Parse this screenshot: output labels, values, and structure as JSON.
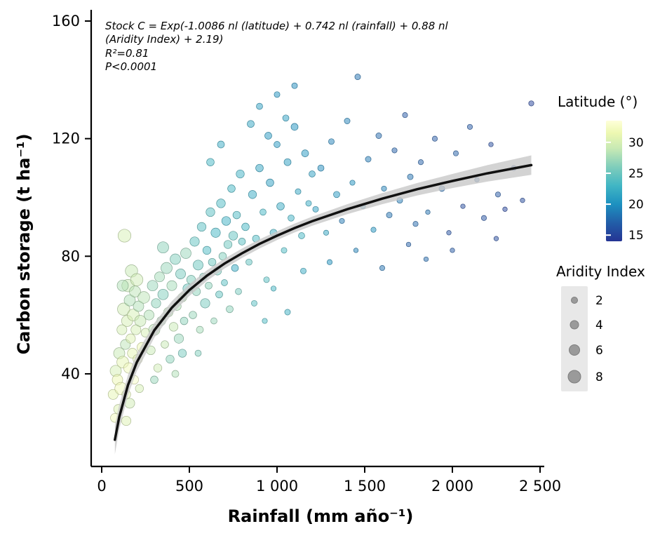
{
  "annotation": {
    "line1": "Stock C = Exp(-1.0086 nl (latitude) + 0.742 nl (rainfall) + 0.88 nl",
    "line2": "(Aridity Index) + 2.19)",
    "line3": "R²=0.81",
    "line4": "P<0.0001"
  },
  "colors": {
    "background": "#ffffff",
    "curve": "#111111",
    "band": "#c8c8c8",
    "axis": "#000000",
    "legend_key_bg": "#e8e8e8",
    "size_legend_fill": "#9a9a9a",
    "size_legend_stroke": "#7d7d7d"
  },
  "chart_data": {
    "type": "scatter",
    "title": "",
    "xlabel": "Rainfall (mm año⁻¹)",
    "ylabel": "Carbon storage (t ha⁻¹)",
    "xlim": [
      0,
      2500
    ],
    "ylim": [
      8.5,
      160
    ],
    "grid": false,
    "x_ticks": {
      "values": [
        0,
        500,
        1000,
        1500,
        2000,
        2500
      ],
      "labels": [
        "0",
        "500",
        "1 000",
        "1 500",
        "2 000",
        "2 500"
      ]
    },
    "y_ticks": {
      "values": [
        40,
        80,
        120,
        160
      ],
      "labels": [
        "40",
        "80",
        "120",
        "160"
      ]
    },
    "fit_curve": {
      "x": [
        75,
        100,
        150,
        200,
        300,
        400,
        500,
        600,
        700,
        800,
        900,
        1000,
        1100,
        1200,
        1400,
        1600,
        1800,
        2000,
        2200,
        2450
      ],
      "y": [
        17.6,
        25.3,
        36.2,
        43.9,
        54.8,
        62.5,
        68.5,
        73.4,
        77.5,
        81.0,
        84.2,
        87.0,
        89.6,
        91.9,
        96.0,
        99.6,
        102.8,
        105.6,
        108.2,
        111.0
      ],
      "band_halfwidth": [
        5,
        4.2,
        3.4,
        3.0,
        2.5,
        2.2,
        2.0,
        1.8,
        1.7,
        1.6,
        1.55,
        1.5,
        1.5,
        1.55,
        1.7,
        1.9,
        2.1,
        2.4,
        2.8,
        3.3
      ]
    },
    "point_fields": [
      "rainfall_mm",
      "carbon_t_ha",
      "latitude_deg",
      "aridity_index"
    ],
    "points": [
      [
        65,
        33,
        31,
        6
      ],
      [
        75,
        25,
        32,
        5
      ],
      [
        80,
        41,
        30,
        7
      ],
      [
        90,
        38,
        31.5,
        6.5
      ],
      [
        95,
        28,
        30.5,
        5.5
      ],
      [
        100,
        47,
        29,
        7
      ],
      [
        110,
        35,
        32,
        8
      ],
      [
        115,
        55,
        30,
        6
      ],
      [
        120,
        44,
        31,
        7.5
      ],
      [
        125,
        62,
        29.5,
        8
      ],
      [
        130,
        87,
        30,
        8.5
      ],
      [
        135,
        50,
        28.5,
        6
      ],
      [
        140,
        33,
        31,
        5
      ],
      [
        145,
        58,
        30,
        7
      ],
      [
        150,
        70,
        29,
        8
      ],
      [
        155,
        42,
        32,
        6.5
      ],
      [
        160,
        65,
        28,
        7
      ],
      [
        165,
        52,
        30.5,
        5.5
      ],
      [
        170,
        75,
        29,
        8
      ],
      [
        175,
        47,
        31,
        6
      ],
      [
        180,
        60,
        30,
        7.5
      ],
      [
        185,
        38,
        32.5,
        5
      ],
      [
        190,
        68,
        28.5,
        7
      ],
      [
        195,
        55,
        30,
        6
      ],
      [
        200,
        72,
        29.5,
        8
      ],
      [
        205,
        45,
        31,
        5.5
      ],
      [
        210,
        63,
        28,
        6.5
      ],
      [
        215,
        35,
        30,
        4.5
      ],
      [
        220,
        58,
        29,
        7
      ],
      [
        230,
        49,
        31.5,
        6
      ],
      [
        240,
        66,
        28.5,
        7.5
      ],
      [
        250,
        54,
        30,
        5
      ],
      [
        160,
        30,
        29.5,
        6
      ],
      [
        140,
        24,
        30.5,
        5.5
      ],
      [
        120,
        70,
        28,
        7
      ],
      [
        270,
        60,
        28,
        6
      ],
      [
        280,
        48,
        29,
        5
      ],
      [
        290,
        70,
        27,
        6.5
      ],
      [
        300,
        55,
        28.5,
        7
      ],
      [
        310,
        64,
        26.5,
        5.5
      ],
      [
        320,
        42,
        29.5,
        4.5
      ],
      [
        330,
        73,
        27.5,
        6
      ],
      [
        340,
        58,
        28,
        5
      ],
      [
        350,
        67,
        26,
        6.5
      ],
      [
        360,
        50,
        29,
        4
      ],
      [
        370,
        76,
        27,
        7
      ],
      [
        380,
        61,
        28.5,
        5.5
      ],
      [
        390,
        45,
        26.5,
        4.5
      ],
      [
        400,
        70,
        27.5,
        6
      ],
      [
        410,
        56,
        29,
        5
      ],
      [
        420,
        79,
        26,
        6.5
      ],
      [
        430,
        63,
        28,
        4.5
      ],
      [
        440,
        52,
        27,
        5.5
      ],
      [
        450,
        74,
        25.5,
        6
      ],
      [
        460,
        66,
        28.5,
        5
      ],
      [
        470,
        58,
        26.5,
        4
      ],
      [
        480,
        81,
        27,
        6.5
      ],
      [
        490,
        69,
        25,
        5.5
      ],
      [
        300,
        38,
        27,
        4
      ],
      [
        350,
        83,
        26.5,
        7
      ],
      [
        420,
        40,
        28,
        3.5
      ],
      [
        460,
        47,
        25.5,
        4.5
      ],
      [
        510,
        72,
        26,
        5
      ],
      [
        520,
        60,
        27,
        4
      ],
      [
        530,
        85,
        24.5,
        5.5
      ],
      [
        540,
        68,
        26.5,
        4.5
      ],
      [
        550,
        77,
        25,
        6
      ],
      [
        560,
        55,
        27.5,
        3.5
      ],
      [
        570,
        90,
        24,
        5
      ],
      [
        580,
        73,
        26,
        4
      ],
      [
        590,
        64,
        25.5,
        5.5
      ],
      [
        600,
        82,
        23.5,
        4.5
      ],
      [
        610,
        70,
        26.5,
        3.5
      ],
      [
        620,
        95,
        24,
        5
      ],
      [
        630,
        78,
        25,
        4
      ],
      [
        640,
        58,
        27,
        3
      ],
      [
        650,
        88,
        23,
        5.5
      ],
      [
        660,
        75,
        25.5,
        4.5
      ],
      [
        670,
        67,
        24.5,
        3.5
      ],
      [
        680,
        98,
        23.5,
        5
      ],
      [
        690,
        80,
        26,
        4
      ],
      [
        700,
        71,
        24,
        3
      ],
      [
        710,
        92,
        22.5,
        5
      ],
      [
        720,
        84,
        25,
        4.5
      ],
      [
        730,
        62,
        26.5,
        3.5
      ],
      [
        740,
        103,
        23,
        4
      ],
      [
        750,
        87,
        24.5,
        5
      ],
      [
        760,
        76,
        22,
        3.5
      ],
      [
        770,
        94,
        23.5,
        4
      ],
      [
        780,
        68,
        25.5,
        3
      ],
      [
        790,
        108,
        22.5,
        4.5
      ],
      [
        800,
        85,
        24,
        3.5
      ],
      [
        620,
        112,
        23,
        4
      ],
      [
        680,
        118,
        22,
        3.5
      ],
      [
        550,
        47,
        26,
        3
      ],
      [
        820,
        90,
        23,
        4
      ],
      [
        840,
        78,
        24.5,
        3
      ],
      [
        860,
        101,
        22,
        4.5
      ],
      [
        880,
        86,
        23.5,
        3.5
      ],
      [
        900,
        110,
        21.5,
        4
      ],
      [
        920,
        95,
        23,
        3
      ],
      [
        940,
        72,
        24,
        2.5
      ],
      [
        960,
        105,
        21,
        4
      ],
      [
        980,
        88,
        22.5,
        3.5
      ],
      [
        1000,
        118,
        20.5,
        3
      ],
      [
        1020,
        97,
        22,
        4
      ],
      [
        1040,
        82,
        23.5,
        2.5
      ],
      [
        1060,
        112,
        21,
        3.5
      ],
      [
        1080,
        93,
        22.5,
        3
      ],
      [
        1100,
        124,
        20,
        3.5
      ],
      [
        1120,
        102,
        21.5,
        2.5
      ],
      [
        1140,
        87,
        23,
        3
      ],
      [
        1160,
        115,
        20.5,
        3.5
      ],
      [
        1180,
        98,
        22,
        2.5
      ],
      [
        1200,
        108,
        21,
        3
      ],
      [
        850,
        125,
        21.5,
        3.5
      ],
      [
        900,
        131,
        21,
        3
      ],
      [
        950,
        121,
        20.5,
        3.5
      ],
      [
        1000,
        135,
        20,
        2.5
      ],
      [
        1050,
        127,
        21,
        3
      ],
      [
        1100,
        138,
        19.5,
        2.5
      ],
      [
        870,
        64,
        24,
        2.5
      ],
      [
        930,
        58,
        23.5,
        2
      ],
      [
        1150,
        75,
        22,
        2.5
      ],
      [
        980,
        69,
        23,
        2
      ],
      [
        1060,
        61,
        22.5,
        2.5
      ],
      [
        1220,
        96,
        21,
        2.5
      ],
      [
        1250,
        110,
        19.5,
        3
      ],
      [
        1280,
        88,
        21.5,
        2
      ],
      [
        1310,
        119,
        19,
        2.5
      ],
      [
        1340,
        101,
        20.5,
        3
      ],
      [
        1370,
        92,
        18.5,
        2
      ],
      [
        1400,
        126,
        19,
        2.5
      ],
      [
        1430,
        105,
        20,
        2
      ],
      [
        1460,
        141,
        18,
        2.5
      ],
      [
        1490,
        97,
        19.5,
        2
      ],
      [
        1520,
        113,
        18.5,
        2.5
      ],
      [
        1550,
        89,
        20,
        2
      ],
      [
        1580,
        121,
        17.5,
        2.5
      ],
      [
        1610,
        103,
        19,
        2
      ],
      [
        1640,
        94,
        18,
        2.5
      ],
      [
        1670,
        116,
        17,
        2
      ],
      [
        1700,
        99,
        18.5,
        2.5
      ],
      [
        1730,
        128,
        16.5,
        2
      ],
      [
        1760,
        107,
        18,
        2.5
      ],
      [
        1790,
        91,
        17.5,
        2
      ],
      [
        1300,
        78,
        20,
        2
      ],
      [
        1450,
        82,
        19,
        1.5
      ],
      [
        1600,
        76,
        18,
        2
      ],
      [
        1750,
        84,
        17,
        1.5
      ],
      [
        1820,
        112,
        17,
        2
      ],
      [
        1860,
        95,
        18,
        1.5
      ],
      [
        1900,
        120,
        16.5,
        2
      ],
      [
        1940,
        103,
        17.5,
        2.5
      ],
      [
        1980,
        88,
        16,
        1.5
      ],
      [
        2020,
        115,
        17,
        2
      ],
      [
        2060,
        97,
        15.5,
        1.5
      ],
      [
        2100,
        124,
        16.5,
        2
      ],
      [
        2140,
        106,
        17,
        1.5
      ],
      [
        2180,
        93,
        16,
        2
      ],
      [
        2220,
        118,
        15.5,
        1.5
      ],
      [
        2260,
        101,
        16.5,
        2
      ],
      [
        2300,
        96,
        15,
        1.5
      ],
      [
        2350,
        110,
        16,
        2
      ],
      [
        2400,
        99,
        15.5,
        1.5
      ],
      [
        2450,
        132,
        15,
        2
      ],
      [
        1850,
        79,
        17.5,
        1.5
      ],
      [
        2000,
        82,
        16.5,
        1.5
      ],
      [
        2250,
        86,
        15.5,
        1.5
      ]
    ],
    "color_scale": {
      "title": "Latitude (°)",
      "domain": [
        14,
        33.5
      ],
      "ticks": [
        "30",
        "25",
        "20",
        "15"
      ],
      "tick_values": [
        30,
        25,
        20,
        15
      ],
      "stops": [
        {
          "v": 14,
          "c": "#253494"
        },
        {
          "v": 17,
          "c": "#225ea8"
        },
        {
          "v": 20,
          "c": "#1d91c0"
        },
        {
          "v": 23,
          "c": "#41b6c4"
        },
        {
          "v": 26,
          "c": "#7fcdbb"
        },
        {
          "v": 29,
          "c": "#c7e9b4"
        },
        {
          "v": 31.5,
          "c": "#edf8b1"
        },
        {
          "v": 33.5,
          "c": "#ffffd9"
        }
      ]
    },
    "size_scale": {
      "title": "Aridity Index",
      "ticks": [
        "2",
        "4",
        "6",
        "8"
      ],
      "tick_values": [
        2,
        4,
        6,
        8
      ],
      "radius": [
        4.5,
        6,
        7.5,
        9
      ]
    }
  }
}
